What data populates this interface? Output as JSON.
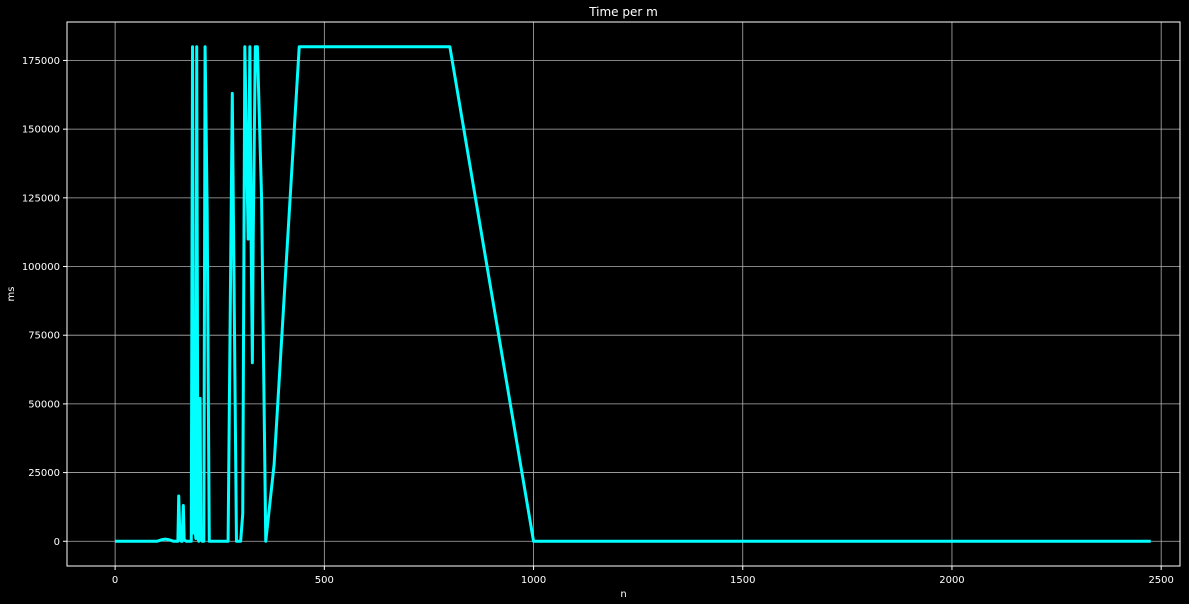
{
  "chart_data": {
    "type": "line",
    "title": "Time per m",
    "xlabel": "n",
    "ylabel": "ms",
    "xlim": [
      -115,
      2545
    ],
    "ylim": [
      -9000,
      189000
    ],
    "xticks": [
      0,
      500,
      1000,
      1500,
      2000,
      2500
    ],
    "yticks": [
      0,
      25000,
      50000,
      75000,
      100000,
      125000,
      150000,
      175000
    ],
    "grid": true,
    "line_color": "#00ffff",
    "background": "#000000",
    "series": [
      {
        "x": [
          0,
          50,
          100,
          110,
          120,
          130,
          140,
          150,
          152,
          155,
          158,
          160,
          163,
          165,
          170,
          175,
          178,
          182,
          185,
          188,
          190,
          193,
          195,
          198,
          200,
          203,
          205,
          208,
          212,
          215,
          220,
          225,
          230,
          240,
          245,
          248,
          252,
          270,
          280,
          282,
          290,
          300,
          305,
          310,
          318,
          322,
          325,
          328,
          330,
          335,
          340,
          350,
          360,
          380,
          440,
          500,
          525,
          800,
          1000,
          1185,
          2475
        ],
        "y": [
          0,
          0,
          0,
          500,
          800,
          500,
          0,
          0,
          16500,
          1000,
          0,
          0,
          13000,
          500,
          0,
          0,
          0,
          0,
          180000,
          3000,
          6000,
          1000,
          180000,
          1000,
          0,
          52000,
          500,
          0,
          0,
          180000,
          120000,
          0,
          0,
          0,
          0,
          0,
          0,
          0,
          163000,
          130000,
          0,
          0,
          10000,
          180000,
          110000,
          180000,
          110000,
          65000,
          110000,
          180000,
          180000,
          125000,
          0,
          28000,
          180000,
          180000,
          180000,
          180000,
          0,
          0,
          0
        ]
      }
    ]
  }
}
